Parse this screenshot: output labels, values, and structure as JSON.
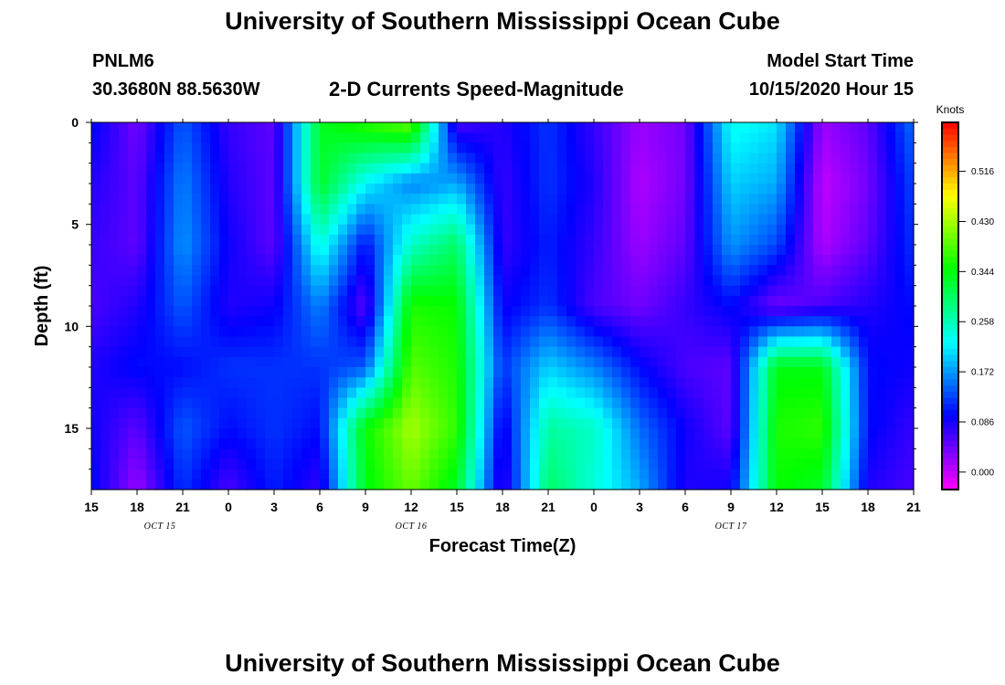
{
  "page": {
    "title_top": "University of Southern Mississippi Ocean Cube",
    "title_bottom": "University of Southern Mississippi Ocean Cube",
    "station_id": "PNLM6",
    "station_coords": "30.3680N 88.5630W",
    "subtitle": "2-D Currents Speed-Magnitude",
    "model_start_label": "Model Start Time",
    "model_start_value": "10/15/2020 Hour 15"
  },
  "chart_data": {
    "type": "heatmap",
    "title": "2-D Currents Speed-Magnitude",
    "xlabel": "Forecast Time(Z)",
    "ylabel": "Depth (ft)",
    "x_start_hour": 15,
    "x_end_hour": 69,
    "x_tick_labels": [
      "15",
      "18",
      "21",
      "0",
      "3",
      "6",
      "9",
      "12",
      "15",
      "18",
      "21",
      "0",
      "3",
      "6",
      "9",
      "12",
      "15",
      "18",
      "21"
    ],
    "date_labels": [
      {
        "text": "OCT 15",
        "hour": 19.5
      },
      {
        "text": "OCT 16",
        "hour": 36.0
      },
      {
        "text": "OCT 17",
        "hour": 57.0
      }
    ],
    "ylim": [
      0,
      18
    ],
    "y_ticks": [
      0,
      5,
      10,
      15
    ],
    "colorbar": {
      "unit": "Knots",
      "range": [
        -0.03,
        0.6
      ],
      "tick_values": [
        0.0,
        0.086,
        0.172,
        0.258,
        0.344,
        0.43,
        0.516
      ],
      "tick_labels": [
        "0.000",
        "0.086",
        "0.172",
        "0.258",
        "0.344",
        "0.430",
        "0.516"
      ]
    },
    "speed_knots": {
      "grid_cols": 19,
      "depth_levels_ft": [
        0,
        3,
        6,
        9,
        12,
        15,
        18
      ],
      "time_hours": [
        15,
        18,
        21,
        24,
        27,
        30,
        33,
        36,
        39,
        42,
        45,
        48,
        51,
        54,
        57,
        60,
        63,
        66,
        69
      ],
      "rows": [
        [
          0.1,
          0.04,
          0.14,
          0.07,
          0.05,
          0.33,
          0.37,
          0.4,
          0.06,
          0.08,
          0.12,
          0.07,
          0.02,
          0.04,
          0.23,
          0.21,
          0.02,
          0.05,
          0.15
        ],
        [
          0.08,
          0.05,
          0.16,
          0.08,
          0.05,
          0.33,
          0.22,
          0.16,
          0.18,
          0.07,
          0.12,
          0.08,
          0.01,
          0.04,
          0.2,
          0.18,
          0.0,
          0.04,
          0.13
        ],
        [
          0.07,
          0.05,
          0.17,
          0.09,
          0.05,
          0.24,
          0.1,
          0.25,
          0.3,
          0.07,
          0.11,
          0.07,
          0.02,
          0.05,
          0.17,
          0.13,
          0.01,
          0.05,
          0.12
        ],
        [
          0.06,
          0.08,
          0.14,
          0.08,
          0.09,
          0.16,
          0.05,
          0.36,
          0.35,
          0.09,
          0.12,
          0.06,
          0.04,
          0.07,
          0.1,
          0.04,
          0.06,
          0.08,
          0.1
        ],
        [
          0.08,
          0.1,
          0.1,
          0.12,
          0.12,
          0.12,
          0.14,
          0.39,
          0.36,
          0.12,
          0.2,
          0.16,
          0.1,
          0.06,
          0.05,
          0.34,
          0.34,
          0.1,
          0.09
        ],
        [
          0.09,
          0.05,
          0.14,
          0.1,
          0.12,
          0.1,
          0.35,
          0.43,
          0.37,
          0.08,
          0.27,
          0.25,
          0.15,
          0.09,
          0.05,
          0.36,
          0.37,
          0.1,
          0.07
        ],
        [
          0.1,
          0.02,
          0.12,
          0.06,
          0.11,
          0.07,
          0.34,
          0.4,
          0.33,
          0.06,
          0.3,
          0.24,
          0.18,
          0.08,
          0.09,
          0.35,
          0.33,
          0.08,
          0.06
        ]
      ]
    }
  }
}
